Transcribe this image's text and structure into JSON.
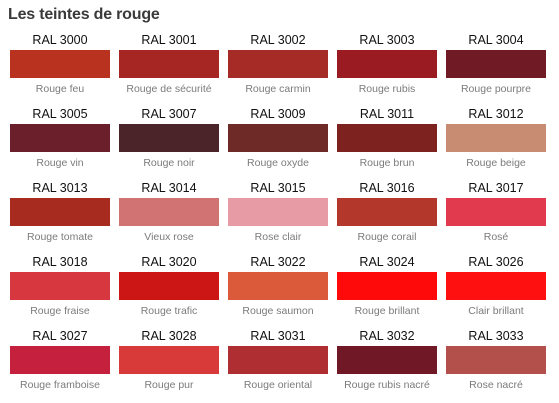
{
  "title": "Les teintes de rouge",
  "swatches": [
    {
      "code": "RAL 3000",
      "name": "Rouge feu",
      "color": "#B8321F"
    },
    {
      "code": "RAL 3001",
      "name": "Rouge de sécurité",
      "color": "#A52622"
    },
    {
      "code": "RAL 3002",
      "name": "Rouge carmin",
      "color": "#A62A25"
    },
    {
      "code": "RAL 3003",
      "name": "Rouge rubis",
      "color": "#9B1B22"
    },
    {
      "code": "RAL 3004",
      "name": "Rouge pourpre",
      "color": "#6F1A24"
    },
    {
      "code": "RAL 3005",
      "name": "Rouge vin",
      "color": "#6A1F2B"
    },
    {
      "code": "RAL 3007",
      "name": "Rouge noir",
      "color": "#4A2428"
    },
    {
      "code": "RAL 3009",
      "name": "Rouge oxyde",
      "color": "#6D2A26"
    },
    {
      "code": "RAL 3011",
      "name": "Rouge brun",
      "color": "#7D221E"
    },
    {
      "code": "RAL 3012",
      "name": "Rouge beige",
      "color": "#C88C73"
    },
    {
      "code": "RAL 3013",
      "name": "Rouge tomate",
      "color": "#A82B1F"
    },
    {
      "code": "RAL 3014",
      "name": "Vieux rose",
      "color": "#D17372"
    },
    {
      "code": "RAL 3015",
      "name": "Rose clair",
      "color": "#E79CA5"
    },
    {
      "code": "RAL 3016",
      "name": "Rouge corail",
      "color": "#B3372B"
    },
    {
      "code": "RAL 3017",
      "name": "Rosé",
      "color": "#E1394D"
    },
    {
      "code": "RAL 3018",
      "name": "Rouge fraise",
      "color": "#D7383F"
    },
    {
      "code": "RAL 3020",
      "name": "Rouge trafic",
      "color": "#CC1616"
    },
    {
      "code": "RAL 3022",
      "name": "Rouge saumon",
      "color": "#DB5A3A"
    },
    {
      "code": "RAL 3024",
      "name": "Rouge brillant",
      "color": "#FF0A0A"
    },
    {
      "code": "RAL 3026",
      "name": "Clair brillant",
      "color": "#FF1010"
    },
    {
      "code": "RAL 3027",
      "name": "Rouge framboise",
      "color": "#C5203D"
    },
    {
      "code": "RAL 3028",
      "name": "Rouge pur",
      "color": "#D73A39"
    },
    {
      "code": "RAL 3031",
      "name": "Rouge oriental",
      "color": "#AF2E31"
    },
    {
      "code": "RAL 3032",
      "name": "Rouge rubis nacré",
      "color": "#711826"
    },
    {
      "code": "RAL 3033",
      "name": "Rose nacré",
      "color": "#B4504C"
    }
  ]
}
